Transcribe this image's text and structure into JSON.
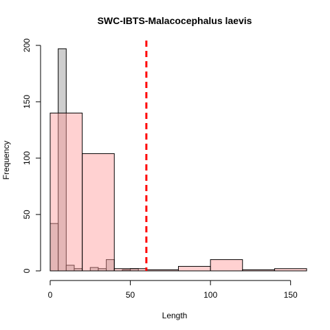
{
  "chart_data": {
    "type": "bar",
    "title": "SWC-IBTS-Malacocephalus laevis",
    "xlabel": "Length",
    "ylabel": "Frequency",
    "xlim": [
      0,
      160
    ],
    "ylim": [
      0,
      200
    ],
    "xticks": [
      0,
      50,
      100,
      150
    ],
    "yticks": [
      0,
      50,
      100,
      150,
      200
    ],
    "series": [
      {
        "fill": "#bebebe",
        "opacity": 0.75,
        "bins": [
          {
            "x0": 0,
            "x1": 5,
            "count": 42
          },
          {
            "x0": 5,
            "x1": 10,
            "count": 197
          },
          {
            "x0": 10,
            "x1": 15,
            "count": 5
          },
          {
            "x0": 15,
            "x1": 20,
            "count": 2
          },
          {
            "x0": 20,
            "x1": 25,
            "count": 0
          },
          {
            "x0": 25,
            "x1": 30,
            "count": 3
          },
          {
            "x0": 30,
            "x1": 35,
            "count": 2
          },
          {
            "x0": 35,
            "x1": 40,
            "count": 10
          },
          {
            "x0": 40,
            "x1": 45,
            "count": 0
          },
          {
            "x0": 45,
            "x1": 50,
            "count": 1
          },
          {
            "x0": 50,
            "x1": 55,
            "count": 2
          }
        ]
      },
      {
        "fill": "#ff9999",
        "opacity": 0.45,
        "bins": [
          {
            "x0": 0,
            "x1": 20,
            "count": 140
          },
          {
            "x0": 20,
            "x1": 40,
            "count": 104
          },
          {
            "x0": 40,
            "x1": 60,
            "count": 2
          },
          {
            "x0": 60,
            "x1": 80,
            "count": 1
          },
          {
            "x0": 80,
            "x1": 100,
            "count": 4
          },
          {
            "x0": 100,
            "x1": 120,
            "count": 10
          },
          {
            "x0": 120,
            "x1": 140,
            "count": 1
          },
          {
            "x0": 140,
            "x1": 160,
            "count": 2
          }
        ]
      }
    ],
    "reference_line": {
      "x": 60,
      "color": "#ff0000",
      "style": "dashed"
    }
  }
}
